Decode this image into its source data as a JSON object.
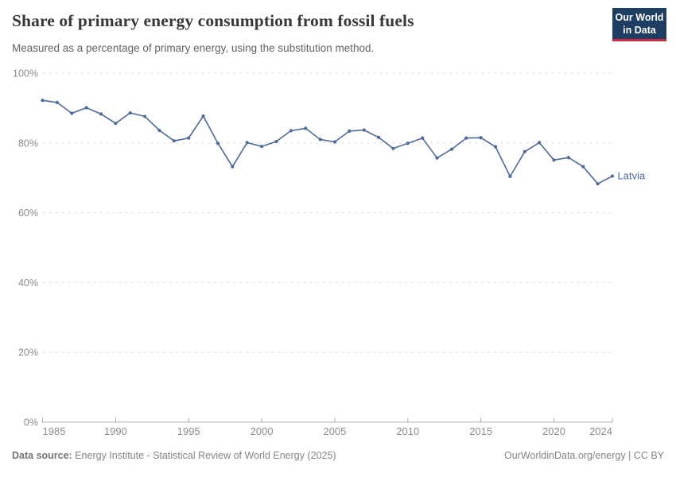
{
  "header": {
    "title": "Share of primary energy consumption from fossil fuels",
    "subtitle": "Measured as a percentage of primary energy, using the substitution method.",
    "logo_line1": "Our World",
    "logo_line2": "in Data",
    "logo_bg": "#1d3d63",
    "logo_accent": "#cc2a41"
  },
  "chart_data": {
    "type": "line",
    "title": "Share of primary energy consumption from fossil fuels",
    "subtitle": "Measured as a percentage of primary energy, using the substitution method.",
    "xlabel": "",
    "ylabel": "",
    "xlim": [
      1985,
      2024
    ],
    "ylim": [
      0,
      100
    ],
    "x_ticks": [
      1985,
      1990,
      1995,
      2000,
      2005,
      2010,
      2015,
      2020,
      2024
    ],
    "y_ticks": [
      0,
      20,
      40,
      60,
      80,
      100
    ],
    "y_tick_suffix": "%",
    "grid": "horizontal-dashed",
    "line_color": "#4c6a9c",
    "grid_color": "#d7d7d7",
    "axis_color": "#afafaf",
    "tick_label_color": "#8c8c8c",
    "series": [
      {
        "name": "Latvia",
        "color": "#4c6a9c",
        "x": [
          1985,
          1986,
          1987,
          1988,
          1989,
          1990,
          1991,
          1992,
          1993,
          1994,
          1995,
          1996,
          1997,
          1998,
          1999,
          2000,
          2001,
          2002,
          2003,
          2004,
          2005,
          2006,
          2007,
          2008,
          2009,
          2010,
          2011,
          2012,
          2013,
          2014,
          2015,
          2016,
          2017,
          2018,
          2019,
          2020,
          2021,
          2022,
          2023,
          2024
        ],
        "values": [
          92.2,
          91.6,
          88.5,
          90.1,
          88.3,
          85.6,
          88.6,
          87.6,
          83.6,
          80.6,
          81.4,
          87.7,
          79.9,
          73.2,
          80.1,
          79.0,
          80.4,
          83.5,
          84.2,
          81.0,
          80.3,
          83.4,
          83.7,
          81.6,
          78.4,
          79.9,
          81.4,
          75.7,
          78.2,
          81.4,
          81.5,
          78.9,
          70.4,
          77.5,
          80.1,
          75.1,
          75.8,
          73.2,
          68.3,
          70.5
        ]
      }
    ],
    "legend_position": "end-of-line-label"
  },
  "footer": {
    "source_label": "Data source:",
    "source_text": " Energy Institute - Statistical Review of World Energy (2025)",
    "right_text": "OurWorldinData.org/energy | CC BY"
  }
}
